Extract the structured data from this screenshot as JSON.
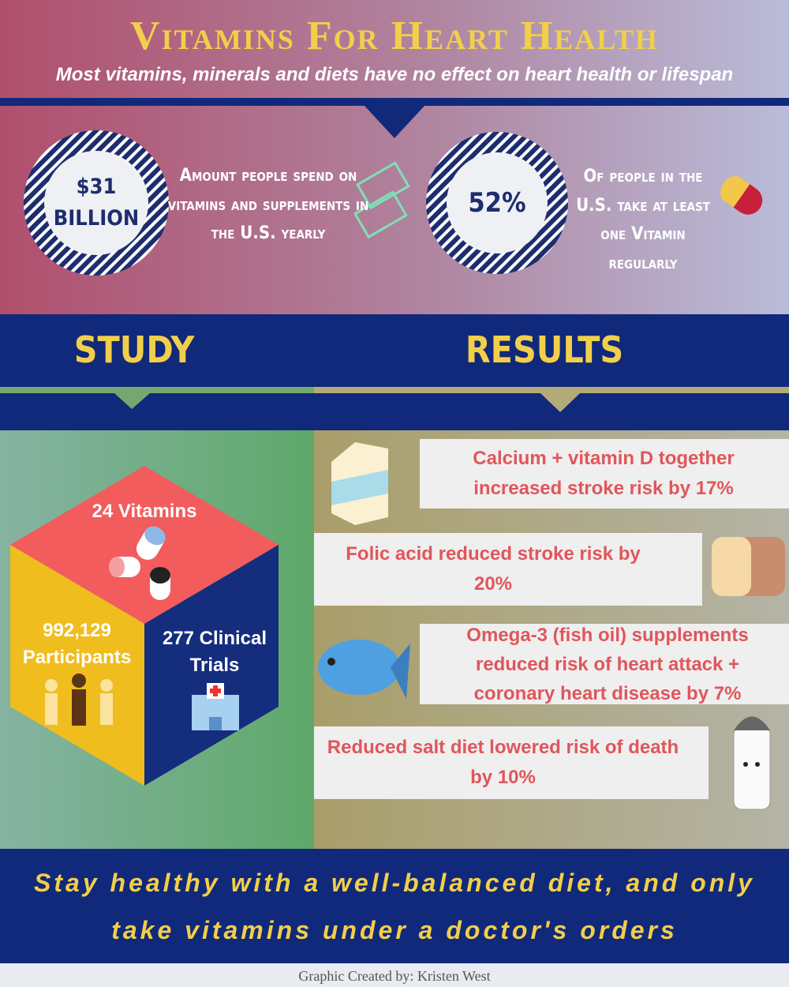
{
  "header": {
    "title": "Vitamins For Heart Health",
    "subtitle": "Most vitamins, minerals and diets have no effect on heart health or lifespan"
  },
  "stats": [
    {
      "value": "$31 Billion",
      "text": "Amount people spend on vitamins and supplements in the U.S. yearly"
    },
    {
      "value": "52%",
      "text": "Of people in the U.S. take at least one Vitamin regularly"
    }
  ],
  "columns": {
    "study": "STUDY",
    "results": "RESULTS"
  },
  "study": {
    "vitamins": "24 Vitamins",
    "participants": "992,129 Participants",
    "trials": "277 Clinical Trials"
  },
  "results": [
    "Calcium + vitamin D together increased stroke risk by 17%",
    "Folic acid reduced stroke risk by 20%",
    "Omega-3 (fish oil) supplements reduced risk of heart attack + coronary heart disease by 7%",
    "Reduced salt diet lowered risk of death by 10%"
  ],
  "footer": {
    "message": "Stay healthy with a well-balanced diet, and only take vitamins under a doctor's orders",
    "credit": "Graphic Created by: Kristen West"
  }
}
